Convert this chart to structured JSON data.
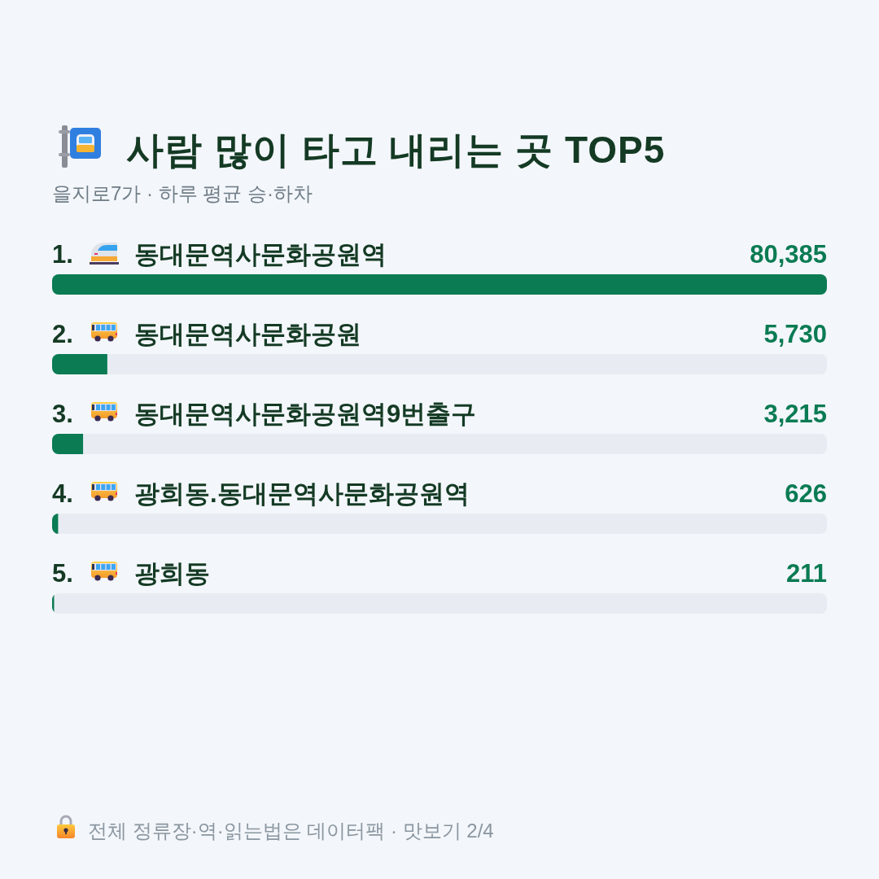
{
  "chart_data": {
    "type": "bar",
    "orientation": "horizontal",
    "title": "사람 많이 타고 내리는 곳 TOP5",
    "subtitle": "을지로7가 · 하루 평균 승·하차",
    "categories": [
      "1. 동대문역사문화공원역",
      "2. 동대문역사문화공원",
      "3. 동대문역사문화공원역9번출구",
      "4. 광희동.동대문역사문화공원역",
      "5. 광희동"
    ],
    "values": [
      80385,
      5730,
      3215,
      626,
      211
    ],
    "value_labels": [
      "80,385",
      "5,730",
      "3,215",
      "626",
      "211"
    ],
    "color": "#0a7b53",
    "xlim": [
      0,
      80385
    ],
    "tick_labels": "y",
    "annotations": [
      "전체 정류장·역·읽는법은 데이터팩 · 맛보기 2/4"
    ]
  }
}
